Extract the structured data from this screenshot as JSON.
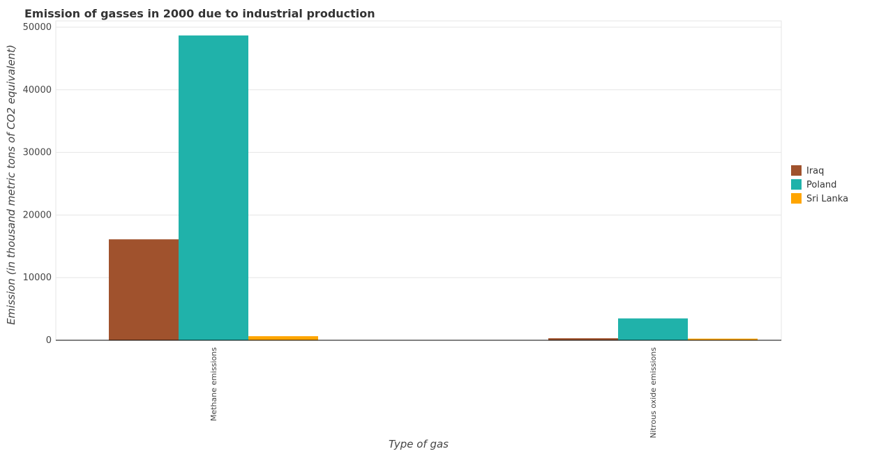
{
  "chart_data": {
    "type": "bar",
    "title": "Emission of gasses in 2000 due to industrial production",
    "xlabel": "Type of gas",
    "ylabel": "Emission (in thousand metric tons of CO2 equivalent)",
    "categories": [
      "Methane emissions",
      "Nitrous oxide emissions"
    ],
    "series": [
      {
        "name": "Iraq",
        "color": "#a0522d",
        "values": [
          16120,
          320
        ]
      },
      {
        "name": "Poland",
        "color": "#20b2aa",
        "values": [
          48680,
          3490
        ]
      },
      {
        "name": "Sri Lanka",
        "color": "#ffa500",
        "values": [
          650,
          260
        ]
      }
    ],
    "ylim": [
      0,
      51000
    ],
    "yticks": [
      0,
      10000,
      20000,
      30000,
      40000,
      50000
    ],
    "ytick_labels": [
      "0",
      "10000",
      "20000",
      "30000",
      "40000",
      "50000"
    ],
    "grid": true,
    "legend_position": "right"
  }
}
